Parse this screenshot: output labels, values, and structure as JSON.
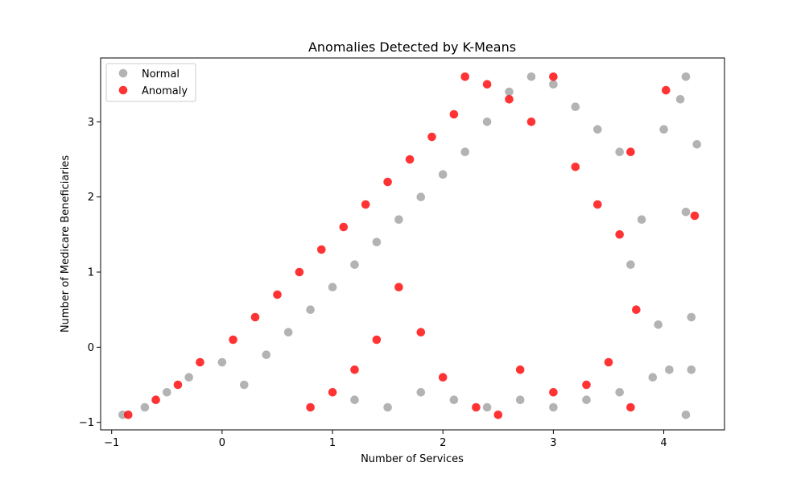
{
  "chart_data": {
    "type": "scatter",
    "title": "Anomalies Detected by K-Means",
    "xlabel": "Number of Services",
    "ylabel": "Number of Medicare Beneficiaries",
    "xlim": [
      -1.1,
      4.55
    ],
    "ylim": [
      -1.1,
      3.85
    ],
    "xticks": [
      -1,
      0,
      1,
      2,
      3,
      4
    ],
    "yticks": [
      -1,
      0,
      1,
      2,
      3
    ],
    "grid": false,
    "legend_position": "top-left",
    "point_model": "points lie below the diagonal y = 1.43*x + 0.45 and above y = -0.9",
    "series": [
      {
        "name": "Normal",
        "color": "#999999",
        "opacity": 0.75,
        "points": [
          [
            -0.9,
            -0.9
          ],
          [
            -0.7,
            -0.8
          ],
          [
            -0.5,
            -0.6
          ],
          [
            -0.3,
            -0.4
          ],
          [
            0.0,
            -0.2
          ],
          [
            0.2,
            -0.5
          ],
          [
            0.4,
            -0.1
          ],
          [
            0.6,
            0.2
          ],
          [
            0.8,
            0.5
          ],
          [
            1.0,
            0.8
          ],
          [
            1.2,
            1.1
          ],
          [
            1.4,
            1.4
          ],
          [
            1.6,
            1.7
          ],
          [
            1.8,
            2.0
          ],
          [
            2.0,
            2.3
          ],
          [
            2.2,
            2.6
          ],
          [
            2.4,
            3.0
          ],
          [
            2.6,
            3.4
          ],
          [
            2.8,
            3.6
          ],
          [
            3.0,
            3.5
          ],
          [
            3.2,
            3.2
          ],
          [
            3.4,
            2.9
          ],
          [
            3.6,
            2.6
          ],
          [
            3.8,
            1.7
          ],
          [
            4.0,
            2.9
          ],
          [
            4.2,
            3.6
          ],
          [
            4.25,
            0.4
          ],
          [
            4.3,
            2.7
          ],
          [
            4.05,
            -0.3
          ],
          [
            4.2,
            -0.9
          ],
          [
            3.9,
            -0.4
          ],
          [
            3.6,
            -0.6
          ],
          [
            3.3,
            -0.7
          ],
          [
            3.0,
            -0.8
          ],
          [
            2.7,
            -0.7
          ],
          [
            2.4,
            -0.8
          ],
          [
            2.1,
            -0.7
          ],
          [
            1.8,
            -0.6
          ],
          [
            1.5,
            -0.8
          ],
          [
            1.2,
            -0.7
          ],
          [
            4.15,
            3.3
          ],
          [
            4.2,
            1.8
          ],
          [
            3.95,
            0.3
          ],
          [
            4.25,
            -0.3
          ],
          [
            3.7,
            1.1
          ]
        ]
      },
      {
        "name": "Anomaly",
        "color": "#ff0000",
        "opacity": 0.8,
        "points": [
          [
            -0.85,
            -0.9
          ],
          [
            -0.6,
            -0.7
          ],
          [
            -0.4,
            -0.5
          ],
          [
            -0.2,
            -0.2
          ],
          [
            0.1,
            0.1
          ],
          [
            0.3,
            0.4
          ],
          [
            0.5,
            0.7
          ],
          [
            0.7,
            1.0
          ],
          [
            0.9,
            1.3
          ],
          [
            1.1,
            1.6
          ],
          [
            1.3,
            1.9
          ],
          [
            1.5,
            2.2
          ],
          [
            1.7,
            2.5
          ],
          [
            1.9,
            2.8
          ],
          [
            2.1,
            3.1
          ],
          [
            2.2,
            3.6
          ],
          [
            2.4,
            3.5
          ],
          [
            2.6,
            3.3
          ],
          [
            2.8,
            3.0
          ],
          [
            3.0,
            3.6
          ],
          [
            3.2,
            2.4
          ],
          [
            3.4,
            1.9
          ],
          [
            3.6,
            1.5
          ],
          [
            3.7,
            2.6
          ],
          [
            3.75,
            0.5
          ],
          [
            3.5,
            -0.2
          ],
          [
            3.3,
            -0.5
          ],
          [
            3.0,
            -0.6
          ],
          [
            2.7,
            -0.3
          ],
          [
            2.5,
            -0.9
          ],
          [
            2.3,
            -0.8
          ],
          [
            2.0,
            -0.4
          ],
          [
            1.8,
            0.2
          ],
          [
            1.6,
            0.8
          ],
          [
            1.4,
            0.1
          ],
          [
            1.2,
            -0.3
          ],
          [
            1.0,
            -0.6
          ],
          [
            0.8,
            -0.8
          ],
          [
            3.7,
            -0.8
          ],
          [
            4.02,
            3.42
          ],
          [
            4.28,
            1.75
          ]
        ]
      }
    ]
  }
}
